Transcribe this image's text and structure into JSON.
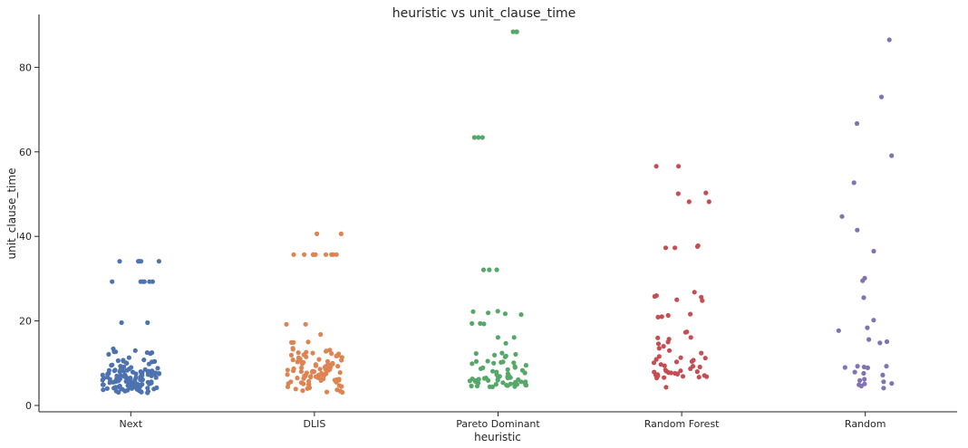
{
  "chart_data": {
    "type": "strip",
    "title": "heuristic vs unit_clause_time",
    "xlabel": "heuristic",
    "ylabel": "unit_clause_time",
    "categories": [
      "Next",
      "DLIS",
      "Pareto Dominant",
      "Random Forest",
      "Random"
    ],
    "yticks": [
      0,
      20,
      40,
      60,
      80
    ],
    "ylim": [
      -1.5,
      92.5
    ],
    "grid": false,
    "colors": {
      "Next": "#4c72b0",
      "DLIS": "#dd8452",
      "Pareto Dominant": "#55a868",
      "Random Forest": "#c44e52",
      "Random": "#8172b3"
    },
    "series": [
      {
        "category": "Next",
        "values": [
          34.1,
          34.1,
          34.1,
          34.1,
          34.1,
          29.3,
          29.3,
          29.3,
          29.3,
          29.3,
          29.3,
          19.6,
          19.6,
          13.4,
          13.0,
          12.7,
          12.7,
          12.5,
          12.5,
          12.3,
          12.1,
          11.3,
          10.8,
          10.7,
          10.6,
          10.5,
          10.4,
          10.3,
          10.1,
          10.0,
          9.8,
          9.6,
          9.5,
          9.3,
          9.1,
          9.0,
          8.8,
          8.6,
          8.5,
          8.4,
          8.3,
          8.2,
          8.1,
          8.0,
          7.9,
          7.8,
          7.7,
          7.6,
          7.5,
          7.4,
          7.3,
          7.2,
          7.1,
          7.0,
          6.9,
          6.8,
          6.7,
          6.6,
          6.5,
          6.4,
          6.3,
          6.2,
          6.1,
          6.0,
          5.9,
          5.8,
          5.7,
          5.6,
          5.5,
          5.4,
          5.3,
          5.2,
          5.1,
          5.0,
          4.9,
          4.8,
          4.7,
          4.6,
          4.5,
          4.4,
          4.3,
          4.2,
          4.1,
          4.0,
          3.9,
          3.8,
          3.7,
          3.6,
          3.5,
          3.4,
          3.3,
          3.2,
          3.1,
          3.0,
          7.5,
          6.5,
          5.5,
          4.5,
          8.0,
          7.0,
          6.0,
          5.0,
          4.0,
          7.7,
          6.7,
          5.7,
          4.7,
          7.3,
          6.3,
          5.3,
          4.3,
          7.9,
          6.9,
          5.9,
          4.9,
          7.1,
          6.1,
          5.1,
          4.1,
          7.6,
          6.6,
          5.6,
          4.6,
          7.2,
          6.2,
          5.2,
          4.2,
          7.8,
          6.8,
          5.8,
          4.8,
          7.4,
          6.4,
          5.4,
          4.4,
          8.2,
          3.3,
          3.6,
          8.4,
          3.2,
          3.8,
          8.1,
          3.4,
          3.9,
          8.3
        ]
      },
      {
        "category": "DLIS",
        "values": [
          40.6,
          40.6,
          35.7,
          35.7,
          35.7,
          35.7,
          35.7,
          35.7,
          35.7,
          35.7,
          35.7,
          19.2,
          19.2,
          16.8,
          15.0,
          14.9,
          14.9,
          13.5,
          13.3,
          13.1,
          12.9,
          12.8,
          12.6,
          12.5,
          12.4,
          12.2,
          12.0,
          11.9,
          11.7,
          11.5,
          11.4,
          11.2,
          11.0,
          10.9,
          10.7,
          10.5,
          10.4,
          10.2,
          10.0,
          9.9,
          9.7,
          9.5,
          9.4,
          9.2,
          9.0,
          8.9,
          8.7,
          8.5,
          8.4,
          8.2,
          8.0,
          7.9,
          7.7,
          7.5,
          7.4,
          7.2,
          7.0,
          6.9,
          6.7,
          6.5,
          6.4,
          6.2,
          6.0,
          5.9,
          5.7,
          5.5,
          5.4,
          5.2,
          5.0,
          4.9,
          4.7,
          4.5,
          4.4,
          4.2,
          4.0,
          3.9,
          3.7,
          3.5,
          3.4,
          3.2,
          3.1,
          9.1,
          8.1,
          7.1,
          6.1,
          5.1,
          9.6,
          8.6,
          7.6,
          6.6,
          5.6,
          9.3,
          8.3,
          7.3,
          6.3,
          5.3,
          9.8,
          8.8,
          7.8,
          6.8,
          5.8,
          10.3,
          10.8,
          11.3,
          11.8,
          12.3,
          8.0,
          7.0,
          6.0,
          9.0,
          8.5,
          7.5,
          6.5
        ]
      },
      {
        "category": "Pareto Dominant",
        "values": [
          88.4,
          88.4,
          88.4,
          63.4,
          63.4,
          63.4,
          32.1,
          32.1,
          32.1,
          22.3,
          22.2,
          21.9,
          21.7,
          21.5,
          19.4,
          19.4,
          19.3,
          16.1,
          16.1,
          14.7,
          12.4,
          12.3,
          12.1,
          11.9,
          11.7,
          11.5,
          10.5,
          10.4,
          10.3,
          10.2,
          10.1,
          10.0,
          9.9,
          9.5,
          9.2,
          9.0,
          8.9,
          8.7,
          8.5,
          8.3,
          8.1,
          7.9,
          7.7,
          7.5,
          7.3,
          7.1,
          6.9,
          6.8,
          6.7,
          6.6,
          6.5,
          6.4,
          6.3,
          6.2,
          6.1,
          6.0,
          5.9,
          5.8,
          5.7,
          5.6,
          5.5,
          5.4,
          5.3,
          5.2,
          5.1,
          5.0,
          4.9,
          4.8,
          4.7,
          4.6,
          4.5,
          4.4,
          6.8,
          6.2,
          5.6,
          5.0,
          4.6,
          6.5,
          5.9,
          5.3,
          4.8,
          4.4
        ]
      },
      {
        "category": "Random Forest",
        "values": [
          56.6,
          56.6,
          50.3,
          50.1,
          48.2,
          48.2,
          37.8,
          37.6,
          37.3,
          37.3,
          26.8,
          26.0,
          25.8,
          25.6,
          25.0,
          24.8,
          21.6,
          21.3,
          21.0,
          20.9,
          17.4,
          17.3,
          16.1,
          16.0,
          15.7,
          15.0,
          14.6,
          14.0,
          13.5,
          13.0,
          12.4,
          11.6,
          11.3,
          11.2,
          10.9,
          10.7,
          10.4,
          10.3,
          10.1,
          9.7,
          9.4,
          9.3,
          9.1,
          8.7,
          8.4,
          8.2,
          8.1,
          8.0,
          7.9,
          7.8,
          7.7,
          7.6,
          7.5,
          7.4,
          7.3,
          7.2,
          7.1,
          7.0,
          6.9,
          6.8,
          6.7,
          6.6,
          6.5,
          4.3
        ]
      },
      {
        "category": "Random",
        "values": [
          86.5,
          73.0,
          66.7,
          59.1,
          52.7,
          44.7,
          41.5,
          36.5,
          30.1,
          29.5,
          25.5,
          20.2,
          18.4,
          17.7,
          15.6,
          15.1,
          14.8,
          9.3,
          9.3,
          9.1,
          9.0,
          8.9,
          7.9,
          7.6,
          7.2,
          6.2,
          5.9,
          5.6,
          5.2,
          5.1,
          4.9,
          4.6,
          4.1
        ]
      }
    ]
  }
}
